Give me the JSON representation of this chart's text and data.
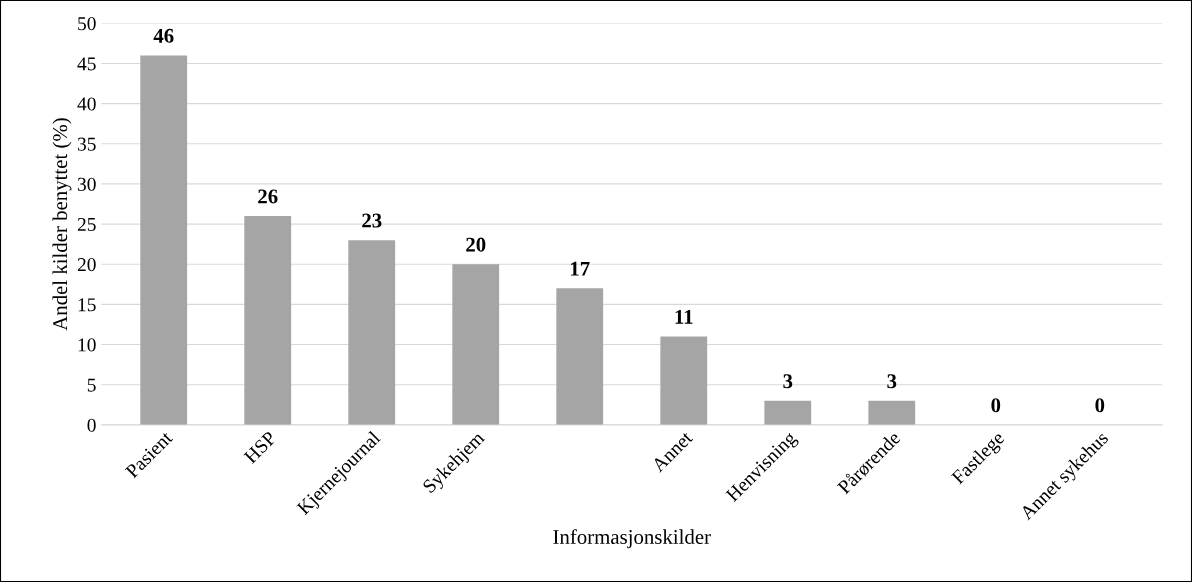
{
  "chart_data": {
    "type": "bar",
    "categories": [
      "Pasient",
      "HSP",
      "Kjernejournal",
      "Sykehjem",
      null,
      "Annet",
      "Henvisning",
      "Pårørende",
      "Fastlege",
      "Annet sykehus"
    ],
    "values": [
      46,
      26,
      23,
      20,
      17,
      11,
      3,
      3,
      0,
      0
    ],
    "color": "#a5a5a5",
    "xlabel": "Informasjonskilder",
    "ylabel": "Andel kilder benyttet (%)",
    "ylim": [
      0,
      50
    ],
    "yticks": [
      0,
      5,
      10,
      15,
      20,
      25,
      30,
      35,
      40,
      45,
      50
    ],
    "grid": "y",
    "data_labels": true,
    "legend": false
  }
}
